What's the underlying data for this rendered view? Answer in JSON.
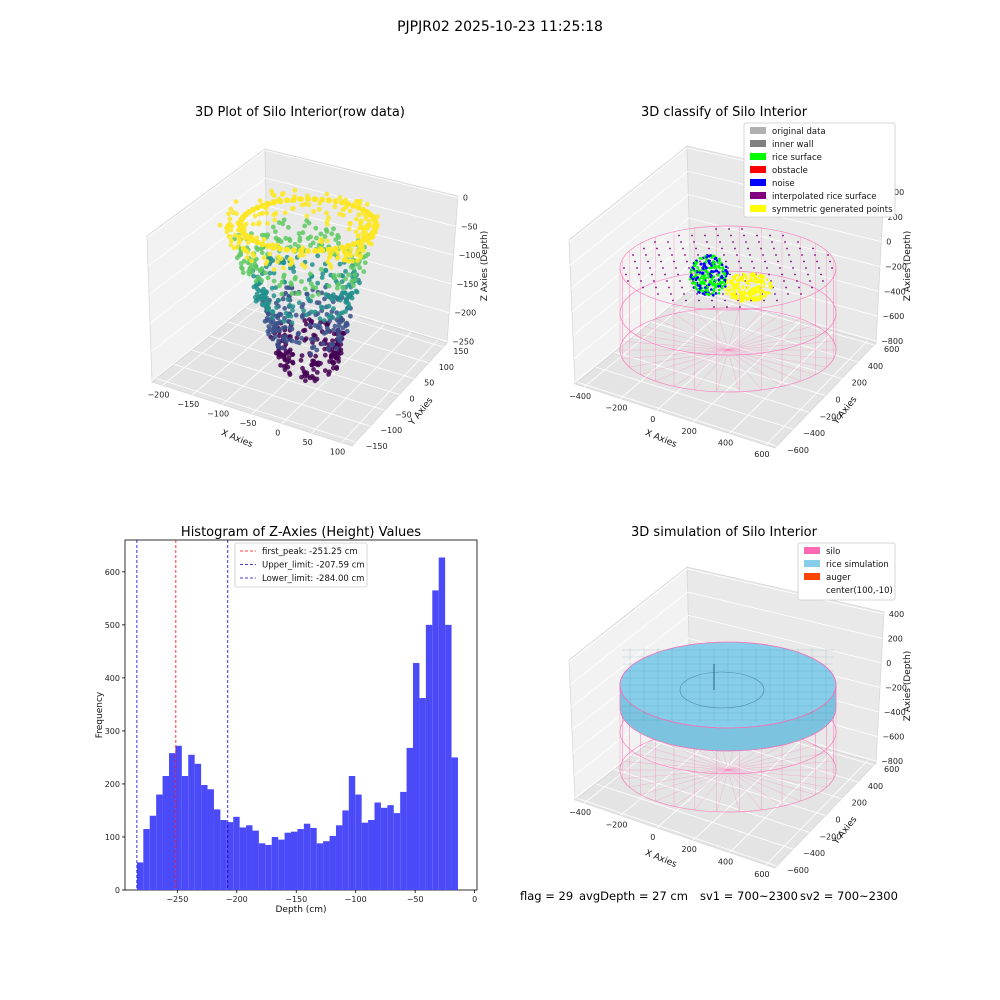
{
  "figure": {
    "suptitle": "PJPJR02 2025-10-23 11:25:18",
    "footer": {
      "flag": "flag = 29",
      "avg_depth": "avgDepth = 27 cm",
      "sv1": "sv1 = 700~2300",
      "sv2": "sv2 = 700~2300"
    }
  },
  "chart_data": [
    {
      "type": "scatter",
      "projection": "3d",
      "title": "3D Plot of Silo Interior(row data)",
      "xlabel": "X Axies",
      "ylabel": "Y Axies",
      "zlabel": "Z Axies (Depth)",
      "xticks": [
        "−200",
        "−150",
        "−100",
        "−50",
        "0",
        "50",
        "100"
      ],
      "yticks": [
        "150",
        "100",
        "50",
        "0",
        "−50",
        "−100",
        "−150"
      ],
      "zticks": [
        "0",
        "−50",
        "−100",
        "−150",
        "−200",
        "−250"
      ],
      "xlim": [
        -220,
        110
      ],
      "ylim": [
        -150,
        150
      ],
      "zlim": [
        -290,
        0
      ],
      "colormap": [
        "#440154",
        "#3b528b",
        "#21918c",
        "#5ec962",
        "#fde725"
      ],
      "note_series": "point cloud colored by depth (viridis)"
    },
    {
      "type": "scatter",
      "projection": "3d",
      "title": "3D classify of Silo Interior",
      "xlabel": "X Axies",
      "ylabel": "Y Axies",
      "zlabel": "Z Axies (Depth)",
      "xticks": [
        "−400",
        "−200",
        "0",
        "200",
        "400",
        "600"
      ],
      "yticks": [
        "600",
        "400",
        "200",
        "0",
        "−200",
        "−400",
        "−600"
      ],
      "zticks": [
        "400",
        "200",
        "0",
        "−200",
        "−400",
        "−600",
        "−800"
      ],
      "legend_position": "upper-right",
      "legend": [
        {
          "label": "original data",
          "color": "#b0b0b0"
        },
        {
          "label": "inner wall",
          "color": "#808080"
        },
        {
          "label": "rice surface",
          "color": "#00ff00"
        },
        {
          "label": "obstacle",
          "color": "#ff0000"
        },
        {
          "label": "noise",
          "color": "#0000ff"
        },
        {
          "label": "interpolated rice surface",
          "color": "#800080"
        },
        {
          "label": "symmetric generated points",
          "color": "#ffff00"
        }
      ]
    },
    {
      "type": "bar",
      "title": "Histogram of Z-Axies (Height) Values",
      "xlabel": "Depth (cm)",
      "ylabel": "Frequency",
      "xlim": [
        -294,
        2
      ],
      "ylim": [
        0,
        660
      ],
      "xticks": [
        -250,
        -200,
        -150,
        -100,
        -50,
        0
      ],
      "yticks": [
        0,
        100,
        200,
        300,
        400,
        500,
        600
      ],
      "bin_start": -284,
      "bin_width": 5.4,
      "bar_color": "#4a4af8",
      "values": [
        52,
        115,
        140,
        180,
        215,
        258,
        272,
        215,
        255,
        238,
        198,
        190,
        152,
        132,
        128,
        138,
        118,
        122,
        112,
        88,
        85,
        100,
        95,
        108,
        110,
        115,
        125,
        117,
        88,
        92,
        102,
        122,
        150,
        215,
        180,
        127,
        132,
        165,
        155,
        160,
        145,
        185,
        268,
        428,
        362,
        500,
        565,
        627,
        500,
        250
      ],
      "vlines": [
        {
          "label": "first_peak: -251.25 cm",
          "x": -251.25,
          "color": "#ff0000"
        },
        {
          "label": "Upper_limit: -207.59 cm",
          "x": -207.59,
          "color": "#0000cc"
        },
        {
          "label": "Lower_limit: -284.00 cm",
          "x": -284.0,
          "color": "#0000cc"
        }
      ],
      "legend_position": "upper-center"
    },
    {
      "type": "surface",
      "projection": "3d",
      "title": "3D simulation of Silo Interior",
      "xlabel": "X Axies",
      "ylabel": "Y Axies",
      "zlabel": "Z Axies (Depth)",
      "xticks": [
        "−400",
        "−200",
        "0",
        "200",
        "400",
        "600"
      ],
      "yticks": [
        "600",
        "400",
        "200",
        "0",
        "−200",
        "−400",
        "−600"
      ],
      "zticks": [
        "400",
        "200",
        "0",
        "−200",
        "−400",
        "−600",
        "−800"
      ],
      "legend_position": "upper-right",
      "legend": [
        {
          "label": "silo",
          "color": "#ff69b4"
        },
        {
          "label": "rice simulation",
          "color": "#87ceeb"
        },
        {
          "label": "auger",
          "color": "#ff4500"
        },
        {
          "label": "center(100,-10)",
          "color": "none"
        }
      ]
    }
  ]
}
